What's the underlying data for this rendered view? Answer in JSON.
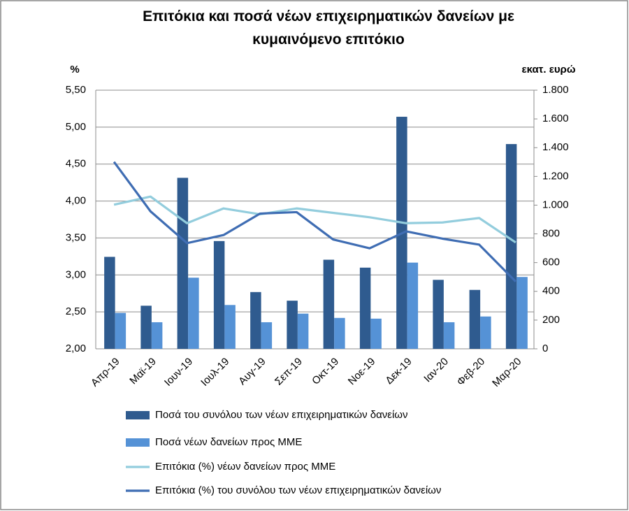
{
  "chart_data": {
    "type": "combo",
    "title": "Επιτόκια και ποσά νέων επιχειρηματικών δανείων με κυμαινόμενο επιτόκιο",
    "y_label": "%",
    "y2_label": "εκατ. ευρώ",
    "categories": [
      "Απρ-19",
      "Μαϊ-19",
      "Ιουν-19",
      "Ιουλ-19",
      "Αυγ-19",
      "Σεπ-19",
      "Οκτ-19",
      "Νοε-19",
      "Δεκ-19",
      "Ιαν-20",
      "Φεβ-20",
      "Μαρ-20"
    ],
    "ylim": [
      2,
      5.5
    ],
    "yticks": [
      {
        "value": 2,
        "label": "2,00"
      },
      {
        "value": 2.5,
        "label": "2,50"
      },
      {
        "value": 3,
        "label": "3,00"
      },
      {
        "value": 3.5,
        "label": "3,50"
      },
      {
        "value": 4,
        "label": "4,00"
      },
      {
        "value": 4.5,
        "label": "4,50"
      },
      {
        "value": 5,
        "label": "5,00"
      },
      {
        "value": 5.5,
        "label": "5,50"
      }
    ],
    "y2lim": [
      0,
      1800
    ],
    "y2ticks": [
      0,
      200,
      400,
      600,
      800,
      {
        "value": 1000,
        "label": "1.000"
      },
      {
        "value": 1200,
        "label": "1.200"
      },
      {
        "value": 1400,
        "label": "1.400"
      },
      {
        "value": 1600,
        "label": "1.600"
      },
      {
        "value": 1800,
        "label": "1.800"
      }
    ],
    "grid": true,
    "series": [
      {
        "name": "Ποσά του συνόλου των νέων επιχειρηματικών δανείων",
        "type": "bar",
        "axis": "y2",
        "color": "#2f5b8f",
        "values": [
          640,
          300,
          1190,
          750,
          395,
          335,
          620,
          565,
          1615,
          480,
          410,
          1425
        ]
      },
      {
        "name": "Ποσά νέων δανείων προς ΜΜΕ",
        "type": "bar",
        "axis": "y2",
        "color": "#5592d6",
        "values": [
          250,
          185,
          495,
          305,
          185,
          245,
          215,
          210,
          600,
          185,
          225,
          500
        ]
      },
      {
        "name": "Επιτόκια (%) νέων δανείων προς ΜΜΕ",
        "type": "line",
        "color": "#93cddd",
        "values": [
          3.95,
          4.06,
          3.7,
          3.9,
          3.82,
          3.9,
          3.84,
          3.78,
          3.7,
          3.71,
          3.77,
          3.44
        ]
      },
      {
        "name": "Επιτόκια (%) του συνόλου των νέων επιχειρηματικών δανείων",
        "type": "line",
        "color": "#3f6db3",
        "values": [
          4.53,
          3.86,
          3.43,
          3.54,
          3.83,
          3.85,
          3.48,
          3.36,
          3.59,
          3.49,
          3.41,
          2.91
        ]
      }
    ]
  }
}
